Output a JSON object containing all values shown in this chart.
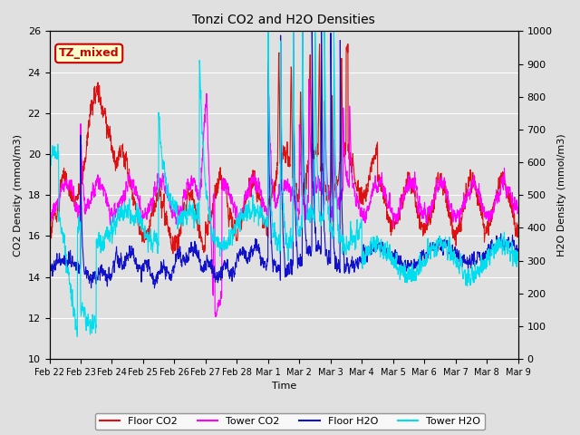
{
  "title": "Tonzi CO2 and H2O Densities",
  "xlabel": "Time",
  "ylabel_left": "CO2 Density (mmol/m3)",
  "ylabel_right": "H2O Density (mmol/m3)",
  "ylim_left": [
    10,
    26
  ],
  "ylim_right": [
    0,
    1000
  ],
  "annotation_text": "TZ_mixed",
  "annotation_facecolor": "#FFFFCC",
  "annotation_edgecolor": "#CC0000",
  "annotation_textcolor": "#CC0000",
  "floor_co2_color": "#DD1111",
  "tower_co2_color": "#FF00FF",
  "floor_h2o_color": "#1111CC",
  "tower_h2o_color": "#00DDEE",
  "legend_labels": [
    "Floor CO2",
    "Tower CO2",
    "Floor H2O",
    "Tower H2O"
  ],
  "background_color": "#E0E0E0",
  "axes_facecolor": "#E0E0E0",
  "grid_color": "#FFFFFF",
  "n_points": 2000,
  "xtick_labels": [
    "Feb 22",
    "Feb 23",
    "Feb 24",
    "Feb 25",
    "Feb 26",
    "Feb 27",
    "Feb 28",
    "Mar 1",
    "Mar 2",
    "Mar 3",
    "Mar 4",
    "Mar 5",
    "Mar 6",
    "Mar 7",
    "Mar 8",
    "Mar 9"
  ],
  "linewidth": 0.8
}
